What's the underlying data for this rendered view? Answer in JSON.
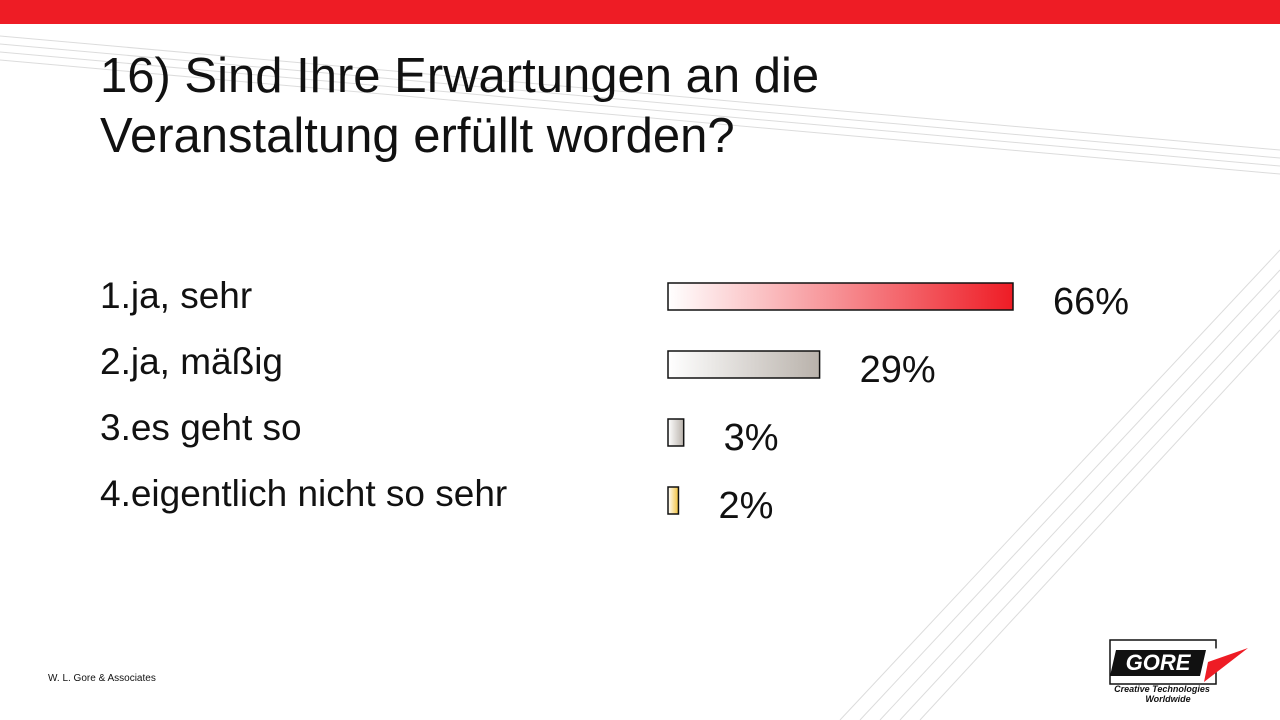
{
  "slide": {
    "title": "16) Sind Ihre Erwartungen an die\nVeranstaltung erfüllt worden?",
    "footer": "W. L. Gore & Associates",
    "logo": {
      "wordmark": "GORE",
      "tagline_line1": "Creative Technologies",
      "tagline_line2": "Worldwide"
    },
    "answers": [
      "1.ja, sehr",
      "2.ja, mäßig",
      "3.es geht so",
      "4.eigentlich nicht so sehr"
    ]
  },
  "colors": {
    "accent": "#ee1c25",
    "bar_gray": "#b9b2ab",
    "bar_yellow": "#f2c23c"
  },
  "chart_data": {
    "type": "bar",
    "orientation": "horizontal",
    "categories": [
      "1.ja, sehr",
      "2.ja, mäßig",
      "3.es geht so",
      "4.eigentlich nicht so sehr"
    ],
    "values": [
      66,
      29,
      3,
      2
    ],
    "value_labels": [
      "66%",
      "29%",
      "3%",
      "2%"
    ],
    "bar_colors": [
      "#ee1c25",
      "#b9b2ab",
      "#b9b2ab",
      "#f2c23c"
    ],
    "unit": "%",
    "grid": false,
    "legend": false
  }
}
